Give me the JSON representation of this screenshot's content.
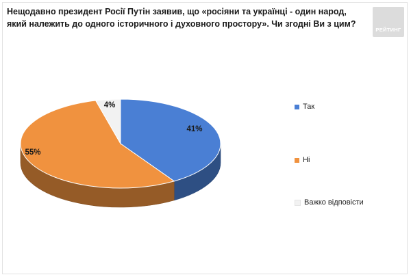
{
  "title": "Нещодавно президент Росії Путін заявив, що «росіяни та українці - один народ, який належить до одного історичного і духовного простору». Чи згодні Ви з цим?",
  "logo": {
    "text": "РЕЙТИНГ"
  },
  "chart_data": {
    "type": "pie",
    "title": "Нещодавно президент Росії Путін заявив, що «росіяни та українці - один народ, який належить до одного історичного і духовного простору». Чи згодні Ви з цим?",
    "categories": [
      "Так",
      "Ні",
      "Важко відповісти"
    ],
    "values": [
      41,
      55,
      4
    ],
    "labels": [
      "41%",
      "55%",
      "4%"
    ],
    "colors": [
      "#4a7fd4",
      "#f0923f",
      "#f2f2f2"
    ],
    "legend": "right",
    "style": "3d"
  }
}
